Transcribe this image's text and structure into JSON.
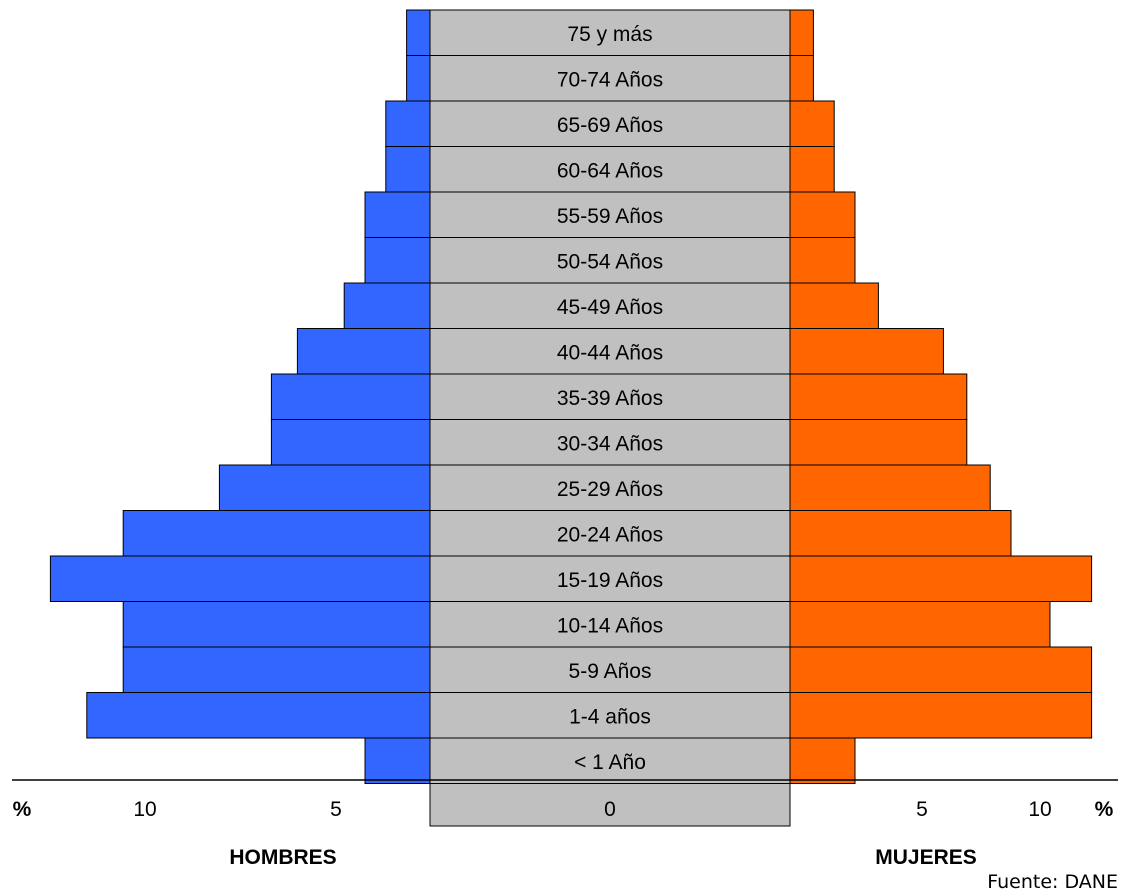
{
  "chart_data": {
    "type": "bar",
    "categories": [
      "75 y más",
      "70-74 Años",
      "65-69 Años",
      "60-64 Años",
      "55-59 Años",
      "50-54 Años",
      "45-49 Años",
      "40-44 Años",
      "35-39 Años",
      "30-34 Años",
      "25-29 Años",
      "20-24 Años",
      "15-19 Años",
      "10-14 Años",
      "5-9 Años",
      "1-4 años",
      "< 1 Año"
    ],
    "series": [
      {
        "name": "HOMBRES",
        "side": "left",
        "color": "#3366FF",
        "values": [
          0.9,
          0.9,
          1.7,
          1.7,
          2.5,
          2.5,
          3.3,
          5.1,
          6.1,
          6.1,
          8.1,
          11.8,
          14.6,
          11.8,
          11.8,
          13.2,
          2.5
        ]
      },
      {
        "name": "MUJERES",
        "side": "right",
        "color": "#FF6600",
        "values": [
          0.9,
          0.9,
          1.7,
          1.7,
          2.5,
          2.5,
          3.4,
          5.9,
          6.8,
          6.8,
          7.7,
          8.5,
          11.6,
          10.0,
          11.6,
          11.6,
          2.5
        ]
      }
    ],
    "x_ticks": {
      "left": [
        "%",
        "10",
        "5"
      ],
      "center": "0",
      "right": [
        "5",
        "10",
        "%"
      ]
    },
    "xlim": [
      0,
      15
    ],
    "center_color": "#C0C0C0",
    "source": "Fuente: DANE"
  }
}
